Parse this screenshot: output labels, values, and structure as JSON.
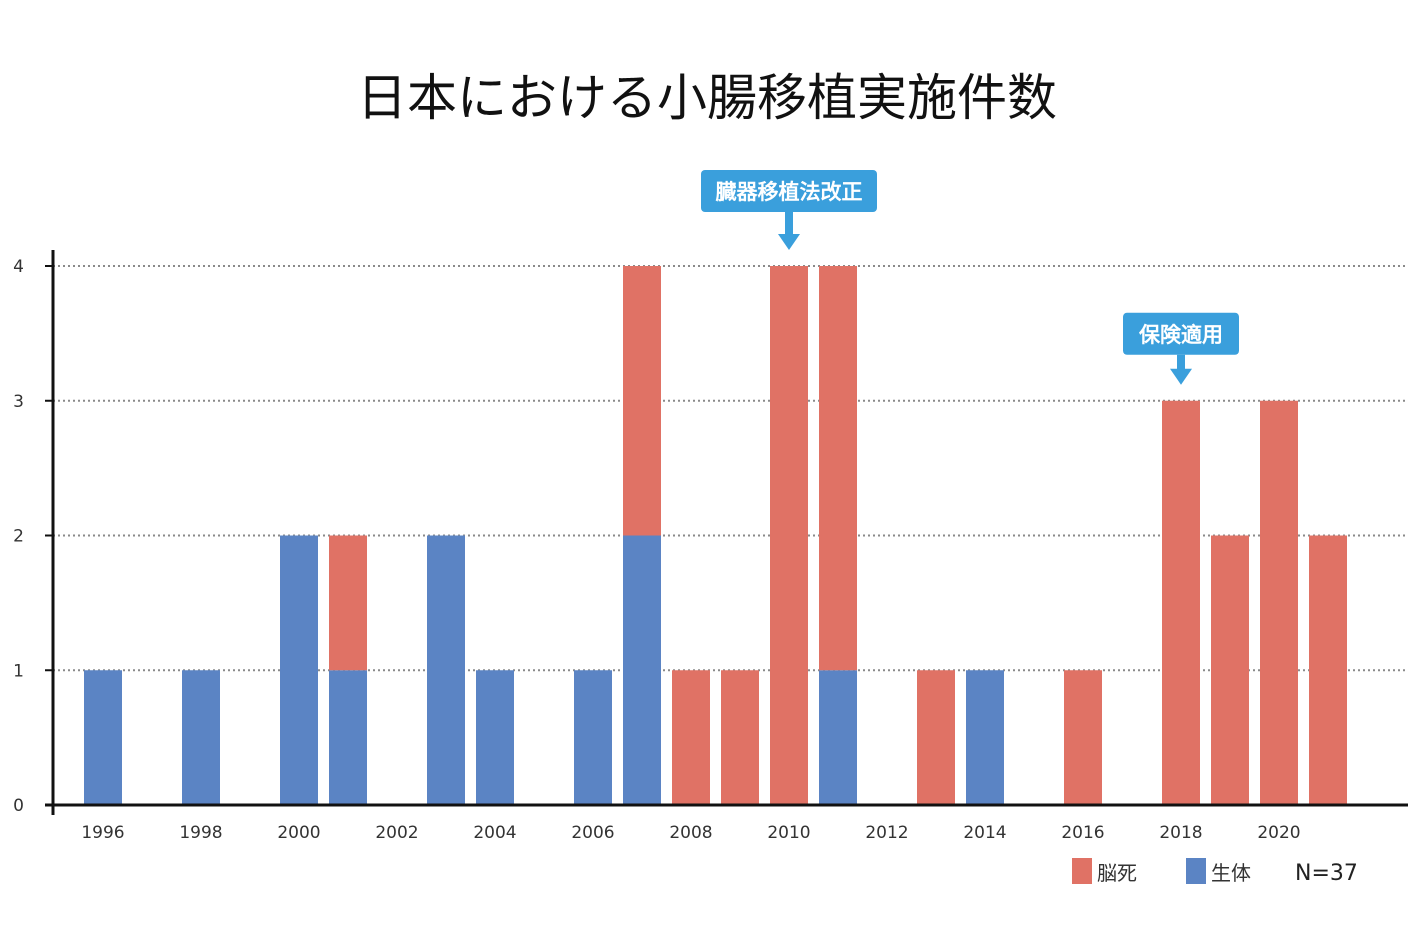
{
  "chart_data": {
    "type": "bar",
    "stacked": true,
    "title": "日本における小腸移植実施件数",
    "x": [
      1996,
      1997,
      1998,
      1999,
      2000,
      2001,
      2002,
      2003,
      2004,
      2005,
      2006,
      2007,
      2008,
      2009,
      2010,
      2011,
      2012,
      2013,
      2014,
      2015,
      2016,
      2017,
      2018,
      2019,
      2020,
      2021
    ],
    "x_tick_labels": [
      "1996",
      "1998",
      "2000",
      "2002",
      "2004",
      "2006",
      "2008",
      "2010",
      "2012",
      "2014",
      "2016",
      "2018",
      "2020"
    ],
    "y_tick_labels": [
      "0",
      "1",
      "2",
      "3",
      "4"
    ],
    "ylim": [
      0,
      4
    ],
    "grid": "horizontal dotted",
    "series": [
      {
        "name": "生体",
        "color": "#5b84c4",
        "values": [
          1,
          0,
          1,
          0,
          2,
          1,
          0,
          2,
          1,
          0,
          1,
          2,
          0,
          0,
          0,
          1,
          0,
          0,
          1,
          0,
          0,
          0,
          0,
          0,
          0,
          0
        ]
      },
      {
        "name": "脳死",
        "color": "#e07265",
        "values": [
          0,
          0,
          0,
          0,
          0,
          1,
          0,
          0,
          0,
          0,
          0,
          2,
          1,
          1,
          4,
          3,
          0,
          1,
          0,
          0,
          1,
          0,
          3,
          2,
          3,
          2
        ]
      }
    ],
    "legend": {
      "placement": "bottom-right",
      "order": [
        "脳死",
        "生体"
      ]
    },
    "annotations": [
      {
        "text": "臓器移植法改正",
        "x": 2010,
        "y": 4
      },
      {
        "text": "保険適用",
        "x": 2018,
        "y": 3
      }
    ],
    "note": "N=37",
    "annotation_color": "#3a9fdc"
  }
}
